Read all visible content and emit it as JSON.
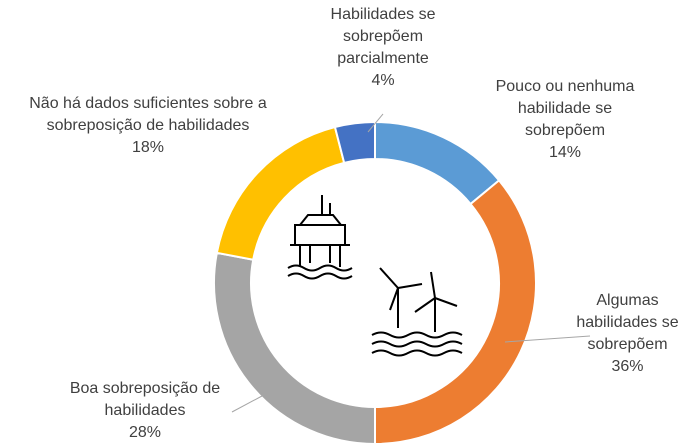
{
  "chart_data": {
    "type": "donut",
    "categories": [
      "Pouco ou nenhuma habilidade se sobrepõem",
      "Algumas habilidades se sobrepõem",
      "Boa sobreposição de habilidades",
      "Não há dados suficientes sobre a sobreposição de habilidades",
      "Habilidades se sobrepõem parcialmente"
    ],
    "values": [
      14,
      36,
      28,
      18,
      4
    ],
    "value_labels": [
      "14%",
      "36%",
      "28%",
      "18%",
      "4%"
    ],
    "colors": [
      "#5b9bd5",
      "#ed7d31",
      "#a5a5a5",
      "#ffc000",
      "#4472c4"
    ]
  }
}
